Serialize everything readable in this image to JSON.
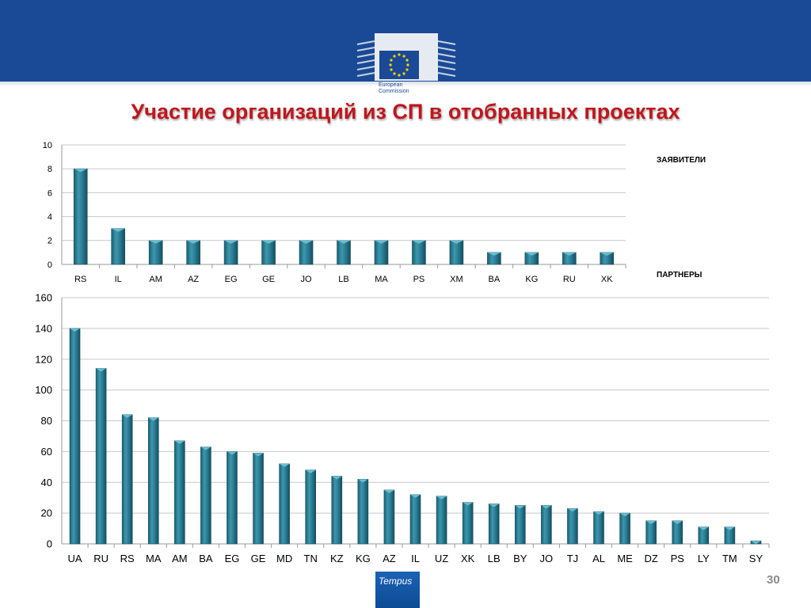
{
  "header": {
    "band_color": "#1a4a95",
    "logo_icon": "european-commission-logo",
    "logo_text": [
      "European",
      "Commission"
    ]
  },
  "slide": {
    "title": "Участие организаций из СП в отобранных проектах",
    "title_color": "#c0161d",
    "page_number": "30",
    "footer_logo_text": "Tempus"
  },
  "chart_data": [
    {
      "type": "bar",
      "legend": "ЗАЯВИТЕЛИ",
      "categories": [
        "RS",
        "IL",
        "AM",
        "AZ",
        "EG",
        "GE",
        "JO",
        "LB",
        "MA",
        "PS",
        "XM",
        "BA",
        "KG",
        "RU",
        "XK"
      ],
      "values": [
        8,
        3,
        2,
        2,
        2,
        2,
        2,
        2,
        2,
        2,
        2,
        1,
        1,
        1,
        1
      ],
      "yticks": [
        0,
        2,
        4,
        6,
        8,
        10
      ],
      "ylim": [
        0,
        10
      ],
      "grid": true,
      "bar_color": "#2b7f96"
    },
    {
      "type": "bar",
      "legend": "ПАРТНЕРЫ",
      "categories": [
        "UA",
        "RU",
        "RS",
        "MA",
        "AM",
        "BA",
        "EG",
        "GE",
        "MD",
        "TN",
        "KZ",
        "KG",
        "AZ",
        "IL",
        "UZ",
        "XK",
        "LB",
        "BY",
        "JO",
        "TJ",
        "AL",
        "ME",
        "DZ",
        "PS",
        "LY",
        "TM",
        "SY"
      ],
      "values": [
        140,
        114,
        84,
        82,
        67,
        63,
        60,
        59,
        52,
        48,
        44,
        42,
        35,
        32,
        31,
        27,
        26,
        25,
        25,
        23,
        21,
        20,
        15,
        15,
        11,
        11,
        2
      ],
      "yticks": [
        0,
        20,
        40,
        60,
        80,
        100,
        120,
        140,
        160
      ],
      "ylim": [
        0,
        160
      ],
      "grid": true,
      "bar_color": "#2b7f96"
    }
  ]
}
